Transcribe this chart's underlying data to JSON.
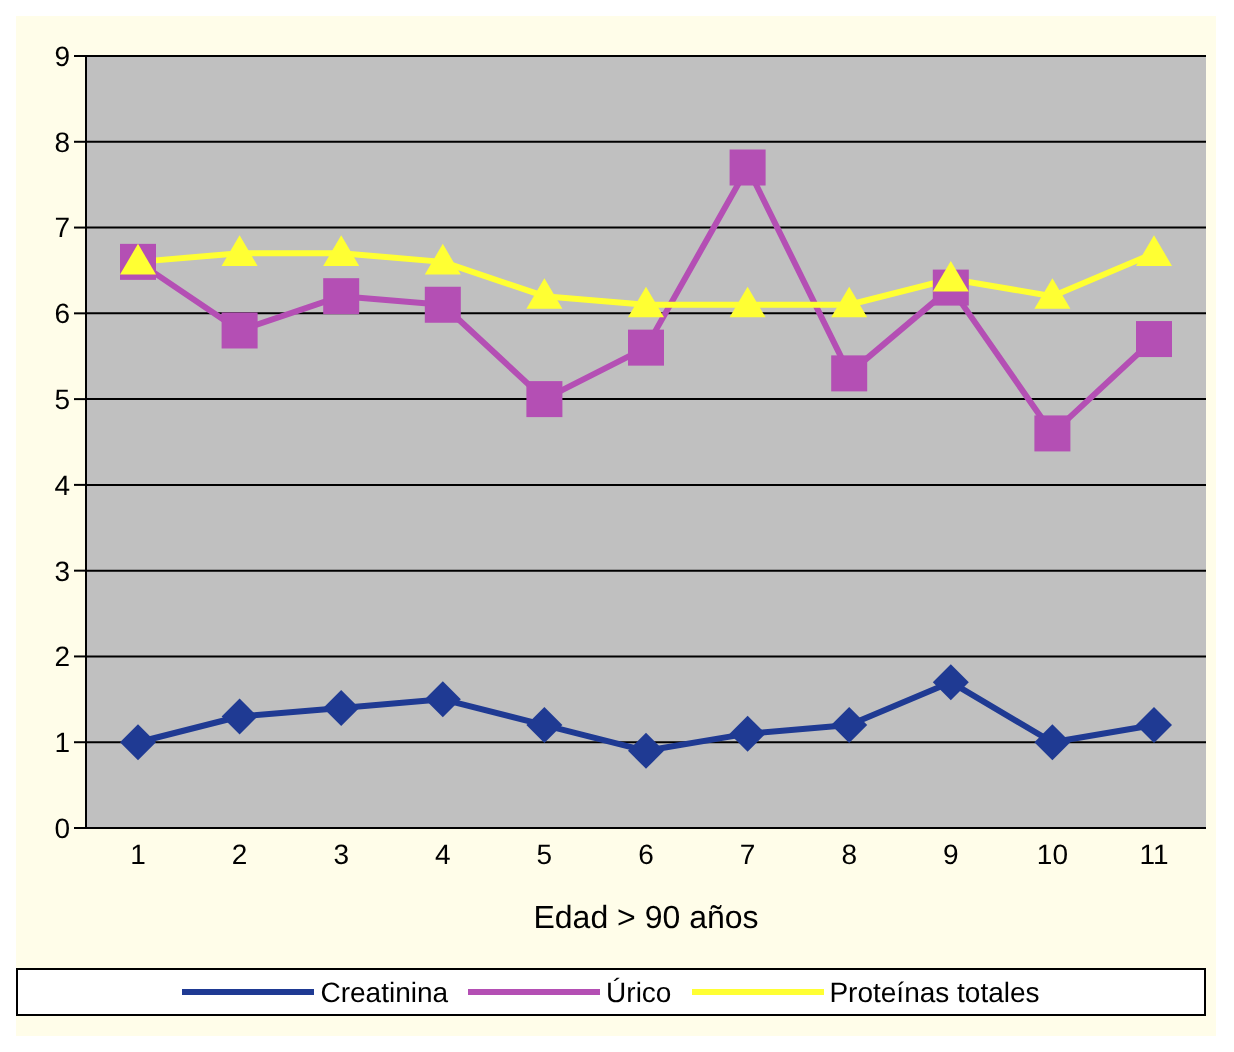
{
  "chart_data": {
    "type": "line",
    "xlabel": "Edad > 90 años",
    "categories": [
      "1",
      "2",
      "3",
      "4",
      "5",
      "6",
      "7",
      "8",
      "9",
      "10",
      "11"
    ],
    "series": [
      {
        "name": "Creatinina",
        "color": "#1f3a93",
        "marker": "diamond",
        "values": [
          1.0,
          1.3,
          1.4,
          1.5,
          1.2,
          0.9,
          1.1,
          1.2,
          1.7,
          1.0,
          1.2
        ]
      },
      {
        "name": "Úrico",
        "color": "#b44fb4",
        "marker": "square",
        "values": [
          6.6,
          5.8,
          6.2,
          6.1,
          5.0,
          5.6,
          7.7,
          5.3,
          6.3,
          4.6,
          5.7
        ]
      },
      {
        "name": "Proteínas totales",
        "color": "#ffff33",
        "marker": "triangle",
        "values": [
          6.6,
          6.7,
          6.7,
          6.6,
          6.2,
          6.1,
          6.1,
          6.1,
          6.4,
          6.2,
          6.7
        ]
      }
    ],
    "ylim": [
      0,
      9
    ],
    "yticks": [
      0,
      1,
      2,
      3,
      4,
      5,
      6,
      7,
      8,
      9
    ],
    "grid": "y",
    "legend": "bottom",
    "line_style": "solid"
  }
}
